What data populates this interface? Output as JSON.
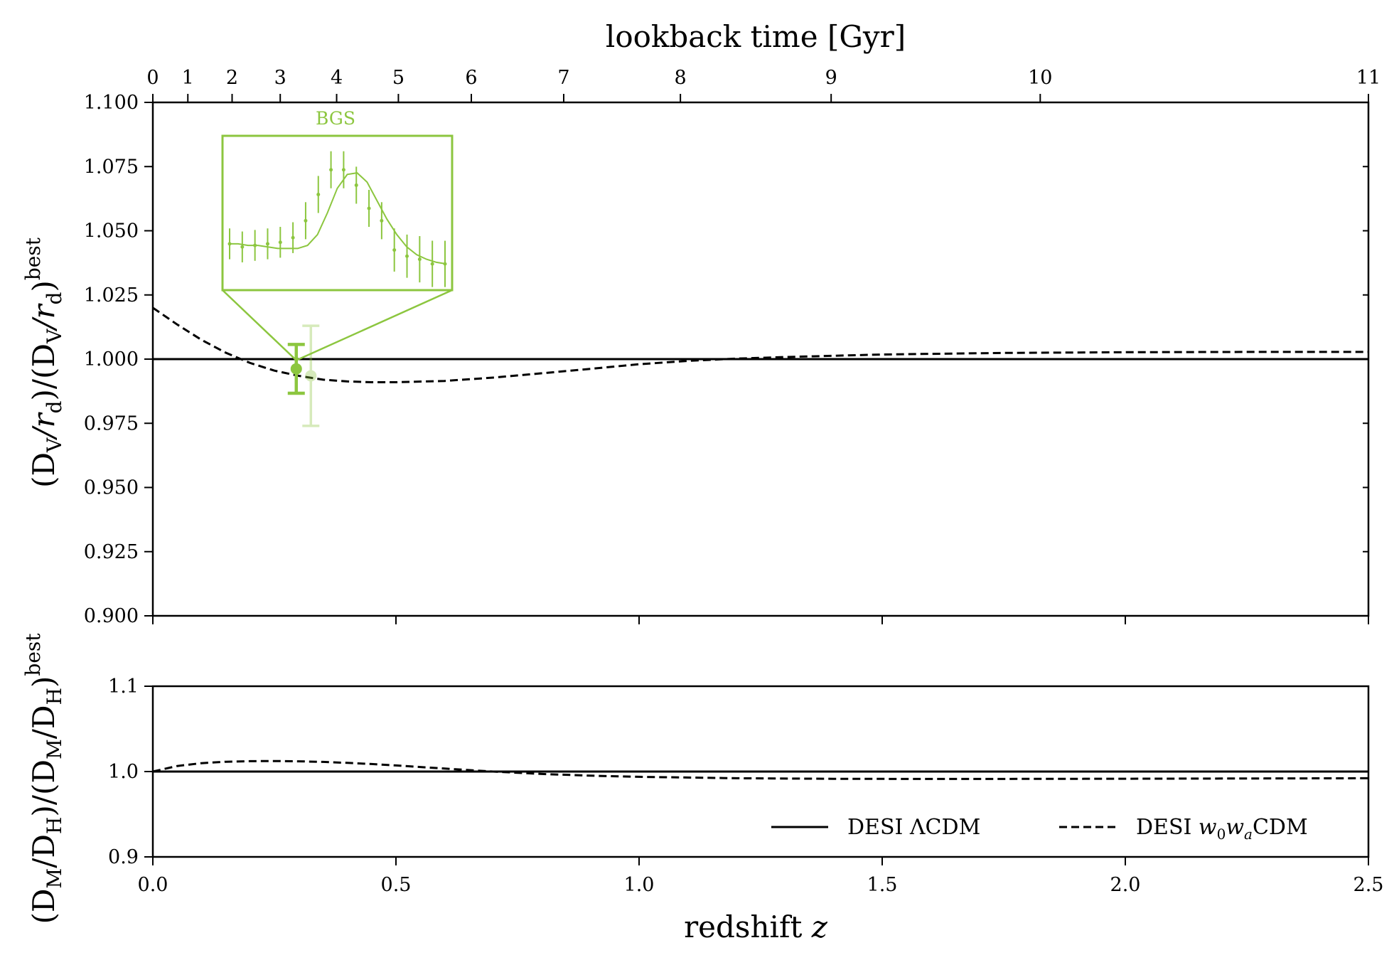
{
  "chart_data": [
    {
      "type": "line",
      "panel": "top",
      "ylabel": "(D_V/r_d)/(D_V/r_d)^best",
      "ylabel_parts": {
        "a": "(D",
        "a_sub": "V",
        "b": "/r",
        "b_sub": "d",
        "c": ")/(D",
        "c_sub": "V",
        "d": "/r",
        "d_sub": "d",
        "e": ")",
        "sup": "best"
      },
      "secondary_xlabel": "lookback time [Gyr]",
      "xlim": [
        0.0,
        2.5
      ],
      "ylim": [
        0.9,
        1.1
      ],
      "ytick_labels": [
        "0.900",
        "0.925",
        "0.950",
        "0.975",
        "1.000",
        "1.025",
        "1.050",
        "1.075",
        "1.100"
      ],
      "ytick_values": [
        0.9,
        0.925,
        0.95,
        0.975,
        1.0,
        1.025,
        1.05,
        1.075,
        1.1
      ],
      "lookback_ticks": [
        {
          "label": "0",
          "z": 0.0
        },
        {
          "label": "1",
          "z": 0.072
        },
        {
          "label": "2",
          "z": 0.163
        },
        {
          "label": "3",
          "z": 0.262
        },
        {
          "label": "4",
          "z": 0.378
        },
        {
          "label": "5",
          "z": 0.505
        },
        {
          "label": "6",
          "z": 0.655
        },
        {
          "label": "7",
          "z": 0.845
        },
        {
          "label": "8",
          "z": 1.085
        },
        {
          "label": "9",
          "z": 1.395
        },
        {
          "label": "10",
          "z": 1.825
        },
        {
          "label": "11",
          "z": 2.5
        }
      ],
      "series": [
        {
          "name": "DESI ΛCDM",
          "style": "solid",
          "x": [
            0.0,
            2.5
          ],
          "y": [
            1.0,
            1.0
          ]
        },
        {
          "name": "DESI w0waCDM",
          "style": "dashed",
          "x": [
            0.0,
            0.05,
            0.1,
            0.15,
            0.2,
            0.25,
            0.3,
            0.35,
            0.4,
            0.45,
            0.5,
            0.6,
            0.7,
            0.8,
            0.9,
            1.0,
            1.1,
            1.2,
            1.3,
            1.4,
            1.5,
            1.75,
            2.0,
            2.25,
            2.5
          ],
          "y": [
            1.02,
            1.0135,
            1.0075,
            1.0025,
            0.9985,
            0.9955,
            0.9935,
            0.992,
            0.9913,
            0.991,
            0.991,
            0.9915,
            0.9928,
            0.9945,
            0.9962,
            0.998,
            0.9993,
            1.0002,
            1.0008,
            1.0013,
            1.0018,
            1.0024,
            1.0027,
            1.0028,
            1.0028
          ]
        }
      ],
      "data_points": [
        {
          "name": "BGS",
          "z": 0.295,
          "y": 0.9962,
          "yerr": 0.0095,
          "color": "#8cc63f",
          "alpha": 1.0
        },
        {
          "name": "BGS faded",
          "z": 0.325,
          "y": 0.9935,
          "yerr": 0.0195,
          "color": "#8cc63f",
          "alpha": 0.35
        }
      ],
      "inset": {
        "title": "BGS",
        "color": "#8cc63f",
        "points_y": [
          0.3,
          0.28,
          0.29,
          0.3,
          0.31,
          0.34,
          0.45,
          0.62,
          0.78,
          0.78,
          0.68,
          0.53,
          0.45,
          0.26,
          0.22,
          0.2,
          0.17,
          0.17
        ],
        "errors": [
          0.1,
          0.1,
          0.1,
          0.1,
          0.1,
          0.1,
          0.12,
          0.12,
          0.12,
          0.12,
          0.12,
          0.12,
          0.12,
          0.14,
          0.14,
          0.15,
          0.15,
          0.15
        ],
        "model_y": [
          0.3,
          0.3,
          0.29,
          0.29,
          0.28,
          0.27,
          0.27,
          0.27,
          0.29,
          0.36,
          0.5,
          0.66,
          0.75,
          0.76,
          0.7,
          0.58,
          0.46,
          0.36,
          0.28,
          0.23,
          0.2,
          0.18,
          0.17
        ]
      }
    },
    {
      "type": "line",
      "panel": "bottom",
      "xlabel": "redshift z",
      "xlabel_parts": {
        "text": "redshift ",
        "var": "z"
      },
      "ylabel": "(D_M/D_H)/(D_M/D_H)^best",
      "ylabel_parts": {
        "a": "(D",
        "a_sub": "M",
        "b": "/D",
        "b_sub": "H",
        "c": ")/(D",
        "c_sub": "M",
        "d": "/D",
        "d_sub": "H",
        "e": ")",
        "sup": "best"
      },
      "xlim": [
        0.0,
        2.5
      ],
      "ylim": [
        0.9,
        1.1
      ],
      "xtick_labels": [
        "0.0",
        "0.5",
        "1.0",
        "1.5",
        "2.0",
        "2.5"
      ],
      "xtick_values": [
        0.0,
        0.5,
        1.0,
        1.5,
        2.0,
        2.5
      ],
      "ytick_labels": [
        "0.9",
        "1.0",
        "1.1"
      ],
      "ytick_values": [
        0.9,
        1.0,
        1.1
      ],
      "series": [
        {
          "name": "DESI ΛCDM",
          "style": "solid",
          "x": [
            0.0,
            2.5
          ],
          "y": [
            1.0,
            1.0
          ]
        },
        {
          "name": "DESI w0waCDM",
          "style": "dashed",
          "x": [
            0.0,
            0.05,
            0.1,
            0.15,
            0.2,
            0.25,
            0.3,
            0.35,
            0.4,
            0.45,
            0.5,
            0.6,
            0.7,
            0.8,
            0.9,
            1.0,
            1.2,
            1.4,
            1.6,
            1.8,
            2.0,
            2.2,
            2.5
          ],
          "y": [
            1.0,
            1.0065,
            1.0098,
            1.0115,
            1.0122,
            1.0123,
            1.012,
            1.0113,
            1.0102,
            1.0088,
            1.0072,
            1.0035,
            1.0,
            0.9972,
            0.9952,
            0.9938,
            0.9922,
            0.9915,
            0.9913,
            0.9914,
            0.9916,
            0.9918,
            0.9922
          ]
        }
      ],
      "legend": {
        "placement": "lower right",
        "entries": [
          {
            "style": "solid",
            "prefix": "DESI ",
            "label": "ΛCDM"
          },
          {
            "style": "dashed",
            "prefix": "DESI ",
            "w": "w",
            "sub0": "0",
            "w2": "w",
            "sub1": "a",
            "suffix": "CDM"
          }
        ]
      }
    }
  ]
}
